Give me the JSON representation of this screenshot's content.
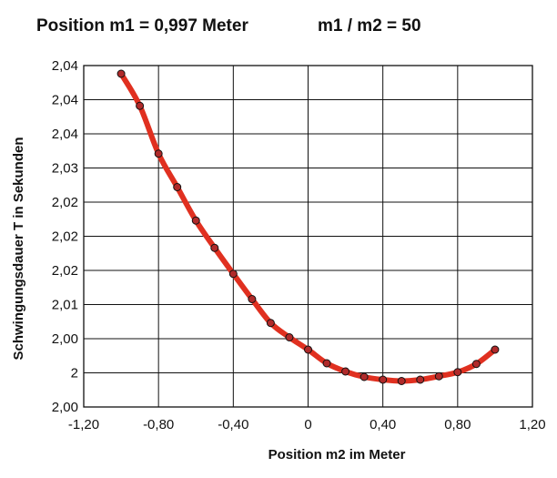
{
  "title_left": "Position m1 = 0,997 Meter",
  "title_right": "m1 / m2 = 50",
  "chart_data": {
    "type": "line",
    "xlabel": "Position m2 im Meter",
    "ylabel": "Schwingungsdauer T in Sekunden",
    "xlim": [
      -1.2,
      1.2
    ],
    "ylim": [
      2.0,
      2.05
    ],
    "grid": true,
    "x_tick_labels": [
      "-1,20",
      "-0,80",
      "-0,40",
      "0",
      "0,40",
      "0,80",
      "1,20"
    ],
    "y_tick_labels": [
      "2,00",
      "2",
      "2,00",
      "2,01",
      "2,02",
      "2,02",
      "2,02",
      "2,03",
      "2,04",
      "2,04",
      "2,04"
    ],
    "line_color": "#e03020",
    "marker_color": "#b02a2a",
    "series": [
      {
        "x": [
          -1.0,
          -0.9,
          -0.8,
          -0.7,
          -0.6,
          -0.5,
          -0.4,
          -0.3,
          -0.2,
          -0.1,
          0.0,
          0.1,
          0.2,
          0.3,
          0.4,
          0.5,
          0.6,
          0.7,
          0.8,
          0.9,
          1.0
        ],
        "y": [
          2.0488,
          2.0441,
          2.0371,
          2.0322,
          2.0273,
          2.0233,
          2.0195,
          2.0158,
          2.0123,
          2.0102,
          2.0084,
          2.0064,
          2.0052,
          2.0044,
          2.004,
          2.0038,
          2.004,
          2.0045,
          2.0051,
          2.0063,
          2.0084
        ]
      }
    ]
  }
}
